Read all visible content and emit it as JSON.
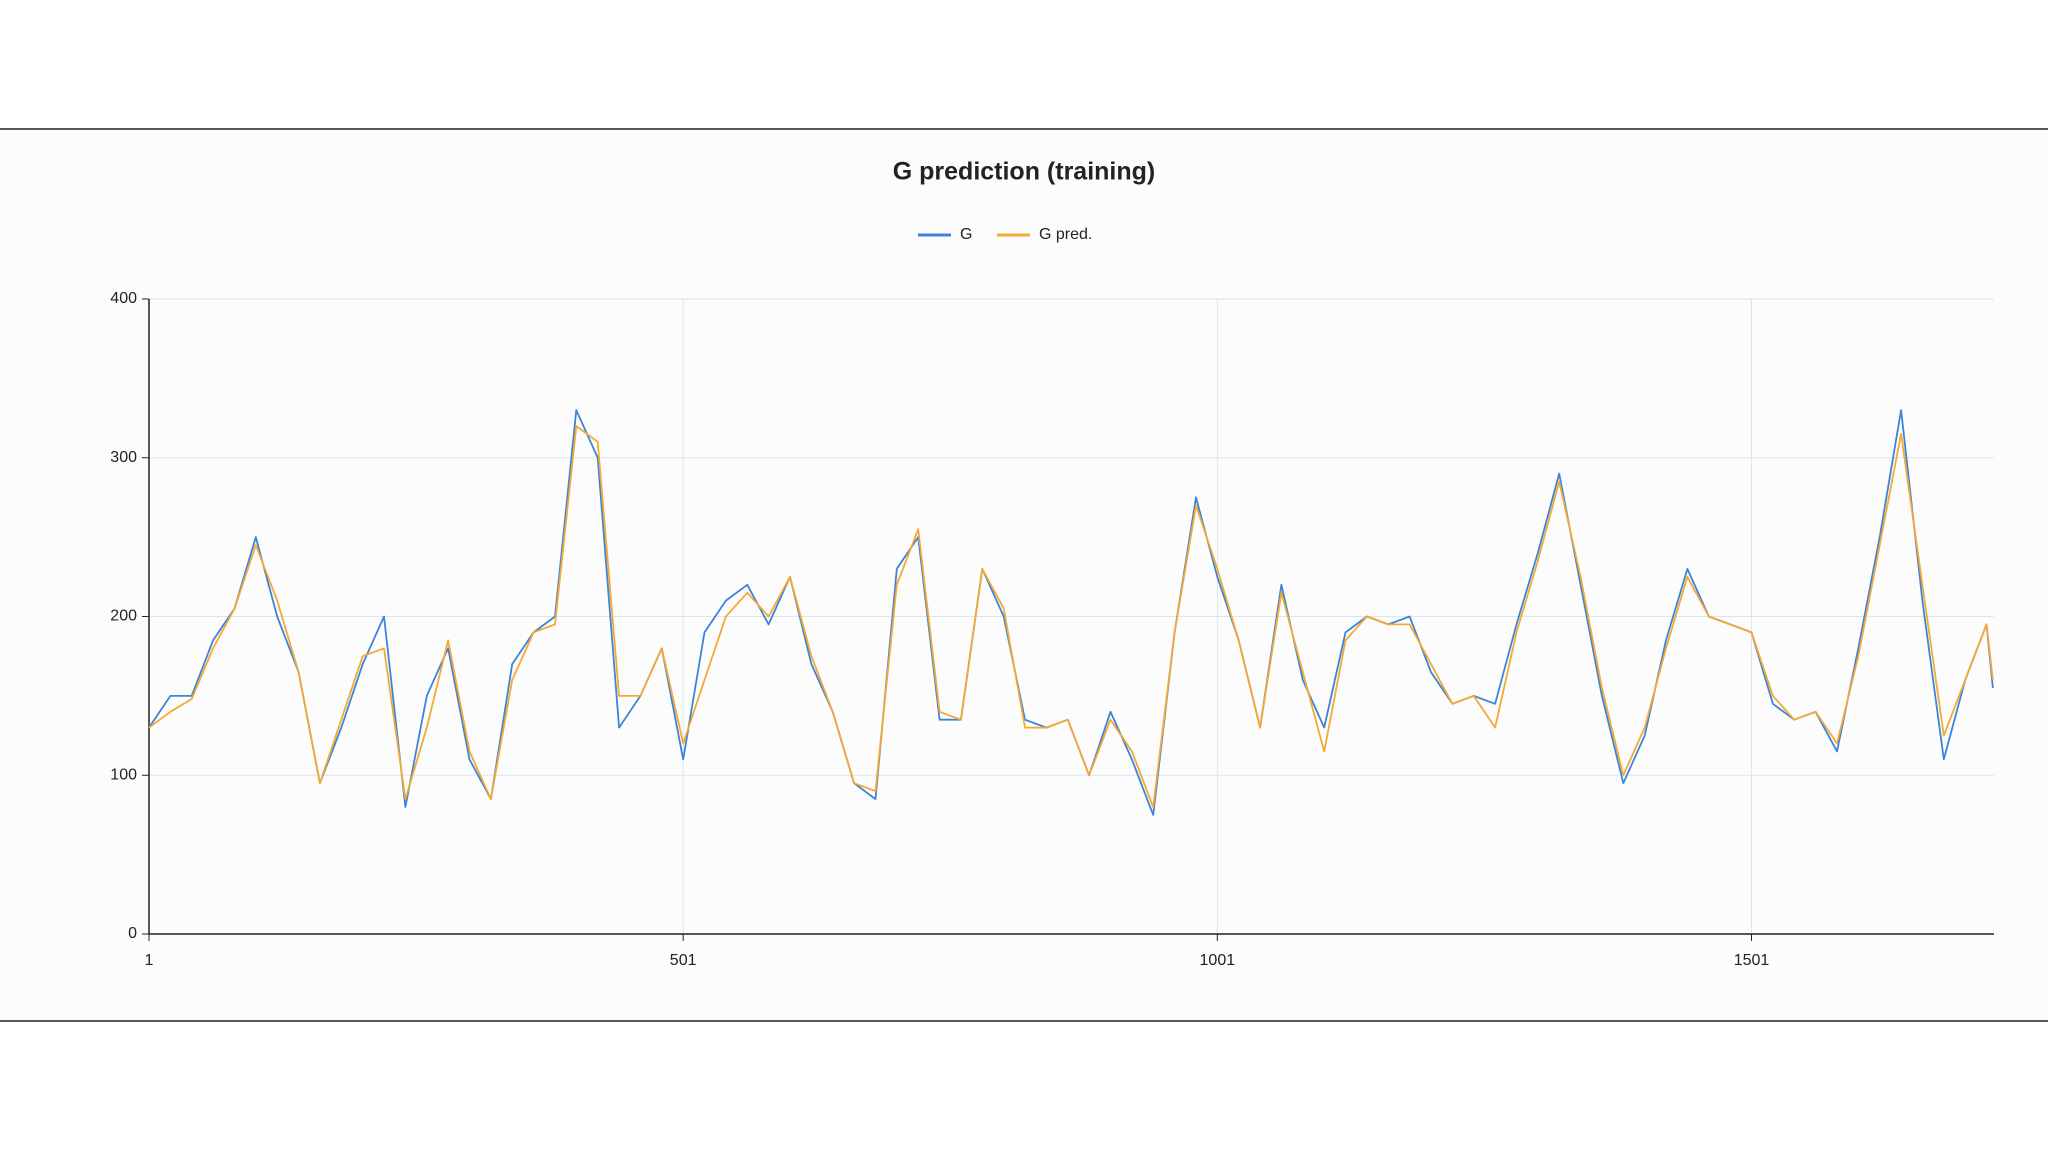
{
  "chart_data": {
    "type": "line",
    "title": "G prediction (training)",
    "x": [
      1,
      21,
      41,
      61,
      81,
      101,
      121,
      141,
      161,
      181,
      201,
      221,
      241,
      261,
      281,
      301,
      321,
      341,
      361,
      381,
      401,
      421,
      441,
      461,
      481,
      501,
      521,
      541,
      561,
      581,
      601,
      621,
      641,
      661,
      681,
      701,
      721,
      741,
      761,
      781,
      801,
      821,
      841,
      861,
      881,
      901,
      921,
      941,
      961,
      981,
      1001,
      1021,
      1041,
      1061,
      1081,
      1101,
      1121,
      1141,
      1161,
      1181,
      1201,
      1221,
      1241,
      1261,
      1281,
      1301,
      1321,
      1341,
      1361,
      1381,
      1401,
      1421,
      1441,
      1461,
      1481,
      1501,
      1521,
      1541,
      1561,
      1581,
      1601,
      1621,
      1641,
      1661,
      1681,
      1701,
      1721,
      1727
    ],
    "series": [
      {
        "name": "G",
        "color": "#3c84d8",
        "values": [
          130,
          150,
          150,
          185,
          205,
          250,
          200,
          165,
          95,
          130,
          170,
          200,
          80,
          150,
          180,
          110,
          85,
          170,
          190,
          200,
          330,
          300,
          130,
          150,
          180,
          110,
          190,
          210,
          220,
          195,
          225,
          170,
          140,
          95,
          85,
          230,
          250,
          135,
          135,
          230,
          200,
          135,
          130,
          135,
          100,
          140,
          110,
          75,
          190,
          275,
          225,
          185,
          130,
          220,
          160,
          130,
          190,
          200,
          195,
          200,
          165,
          145,
          150,
          145,
          195,
          240,
          290,
          220,
          150,
          95,
          125,
          185,
          230,
          200,
          195,
          190,
          145,
          135,
          140,
          115,
          180,
          250,
          330,
          210,
          110,
          160,
          195,
          155
        ]
      },
      {
        "name": "G pred.",
        "color": "#f5a934",
        "values": [
          130,
          140,
          148,
          180,
          205,
          245,
          210,
          165,
          95,
          135,
          175,
          180,
          85,
          130,
          185,
          115,
          85,
          160,
          190,
          195,
          320,
          310,
          150,
          150,
          180,
          120,
          160,
          200,
          215,
          200,
          225,
          175,
          140,
          95,
          90,
          220,
          255,
          140,
          135,
          230,
          205,
          130,
          130,
          135,
          100,
          135,
          115,
          80,
          190,
          270,
          230,
          185,
          130,
          215,
          165,
          115,
          185,
          200,
          195,
          195,
          170,
          145,
          150,
          130,
          190,
          235,
          285,
          225,
          155,
          100,
          130,
          180,
          225,
          200,
          195,
          190,
          150,
          135,
          140,
          120,
          175,
          245,
          315,
          220,
          125,
          160,
          195,
          160
        ]
      }
    ],
    "xlim": [
      1,
      1728
    ],
    "xticks": [
      1,
      501,
      1001,
      1501
    ],
    "ylim": [
      0,
      400
    ],
    "yticks": [
      0,
      100,
      200,
      300,
      400
    ],
    "grid": true,
    "legend": "top"
  }
}
